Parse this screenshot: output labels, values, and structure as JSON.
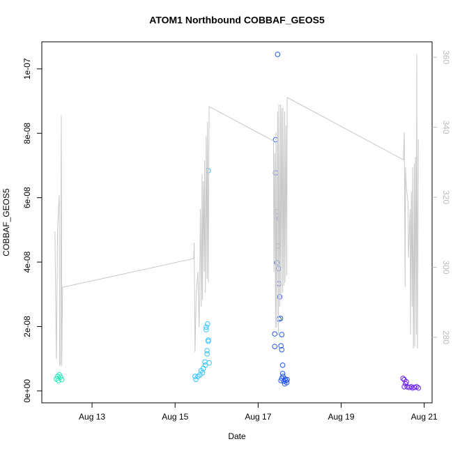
{
  "chart_data": {
    "type": "scatter",
    "title": "ATOM1 Northbound COBBAF_GEOS5",
    "x_label": "Date",
    "y_label": "COBBAF_GEOS5",
    "xlim": [
      11.79,
      21.19
    ],
    "xticks": [
      {
        "value": 13,
        "label": "Aug 13"
      },
      {
        "value": 15,
        "label": "Aug 15"
      },
      {
        "value": 17,
        "label": "Aug 17"
      },
      {
        "value": 19,
        "label": "Aug 19"
      },
      {
        "value": 21,
        "label": "Aug 21"
      }
    ],
    "ylim": [
      -3.7e-09,
      1.084e-07
    ],
    "yticks": [
      {
        "value": 0,
        "label": "0e+00"
      },
      {
        "value": 2e-08,
        "label": "2e-08"
      },
      {
        "value": 4e-08,
        "label": "4e-08"
      },
      {
        "value": 6e-08,
        "label": "6e-08"
      },
      {
        "value": 8e-08,
        "label": "8e-08"
      },
      {
        "value": 1e-07,
        "label": "1e-07"
      }
    ],
    "y2lim": [
      261.3,
      364.4
    ],
    "y2ticks": [
      280,
      300,
      320,
      340,
      360
    ],
    "y2color": "#bbbbbb",
    "series": [
      {
        "color": "#19e8b4",
        "x": [
          12.14,
          12.17,
          12.21,
          12.24,
          12.27,
          12.19
        ],
        "values": [
          3.7e-09,
          4.5e-09,
          5e-09,
          4.3e-09,
          3.5e-09,
          3.2e-09
        ]
      },
      {
        "color": "#33c2ff",
        "x": [
          15.48,
          15.5,
          15.55,
          15.6,
          15.63,
          15.66,
          15.68,
          15.72,
          15.73,
          15.75,
          15.75,
          15.77,
          15.78,
          15.8,
          15.8,
          15.82,
          15.8,
          15.77
        ],
        "values": [
          4.5e-09,
          3.6e-09,
          4.5e-09,
          5e-09,
          6.3e-09,
          5.6e-09,
          7e-09,
          9e-09,
          8e-09,
          1.9e-08,
          1.98e-08,
          1.25e-08,
          2.08e-08,
          1.58e-08,
          1.54e-08,
          8.7e-09,
          6.84e-08,
          1.15e-08
        ]
      },
      {
        "color": "#2255ee",
        "x": [
          17.47,
          17.42,
          17.42,
          17.44,
          17.5,
          17.47,
          17.45,
          17.49,
          17.5,
          17.52,
          17.5,
          17.54,
          17.4,
          17.57,
          17.4,
          17.55,
          17.57,
          17.59,
          17.59,
          17.57,
          17.62,
          17.65,
          17.69,
          17.7,
          17.64,
          17.67,
          17.55,
          17.6
        ],
        "values": [
          1.045e-07,
          7.8e-08,
          6.77e-08,
          5.56e-08,
          5.35e-08,
          4.5e-08,
          3.98e-08,
          3.8e-08,
          3.33e-08,
          2.92e-08,
          2.23e-08,
          2.25e-08,
          1.77e-08,
          1.75e-08,
          1.38e-08,
          1.4e-08,
          1.28e-08,
          8e-09,
          5.4e-09,
          3.9e-09,
          3e-09,
          3.7e-09,
          2.6e-09,
          3.5e-09,
          2.2e-09,
          3.2e-09,
          3.2e-09,
          4.5e-09
        ]
      },
      {
        "color": "#6a1cf0",
        "x": [
          20.49,
          20.52,
          20.55,
          20.59,
          20.52,
          20.64,
          20.69,
          20.72,
          20.77,
          20.82,
          20.86,
          20.57
        ],
        "values": [
          3.9e-09,
          3.5e-09,
          2.2e-09,
          1.3e-09,
          1.3e-09,
          1.1e-09,
          1.3e-09,
          9e-10,
          1.1e-09,
          1.3e-09,
          9e-10,
          2.8e-09
        ]
      },
      {
        "type": "line",
        "axis": "y2",
        "color": "#c8c8c8",
        "x": [
          12.106,
          12.14,
          12.17,
          12.21,
          12.22,
          12.24,
          12.26,
          12.27,
          12.29,
          15.45,
          15.46,
          15.48,
          15.51,
          15.55,
          15.58,
          15.61,
          15.63,
          15.65,
          15.66,
          15.68,
          15.7,
          15.71,
          15.73,
          15.75,
          15.77,
          15.78,
          15.8,
          15.82,
          17.37,
          17.38,
          17.4,
          17.42,
          17.43,
          17.45,
          17.47,
          17.49,
          17.5,
          17.52,
          17.54,
          17.55,
          17.57,
          17.59,
          17.6,
          17.62,
          17.64,
          17.65,
          17.67,
          17.69,
          17.7,
          20.5,
          20.52,
          20.54,
          20.55,
          20.57,
          20.61,
          20.62,
          20.66,
          20.67,
          20.69,
          20.71,
          20.72,
          20.74,
          20.76,
          20.77,
          20.79,
          20.81,
          20.82,
          20.84,
          20.86
        ],
        "values": [
          310.2,
          273.8,
          311.0,
          320.6,
          271.8,
          272.8,
          343.5,
          271.8,
          294.3,
          302.5,
          307.1,
          275.8,
          292.7,
          298.7,
          282.8,
          316.6,
          288.8,
          326.6,
          290.7,
          324.6,
          298.7,
          330.5,
          292.7,
          337.5,
          296.7,
          341.5,
          295.7,
          345.9,
          336.1,
          298.7,
          332.5,
          282.8,
          338.5,
          282.8,
          344.5,
          280.8,
          346.5,
          288.8,
          346.5,
          290.7,
          345.5,
          292.7,
          345.5,
          294.7,
          344.5,
          295.7,
          340.5,
          297.7,
          348.5,
          330.7,
          338.5,
          294.3,
          328.6,
          322.6,
          318.6,
          302.7,
          316.6,
          280.8,
          321.6,
          288.8,
          328.6,
          276.8,
          329.6,
          277.4,
          331.5,
          280.8,
          360.8,
          276.8,
          336.5
        ]
      }
    ]
  }
}
